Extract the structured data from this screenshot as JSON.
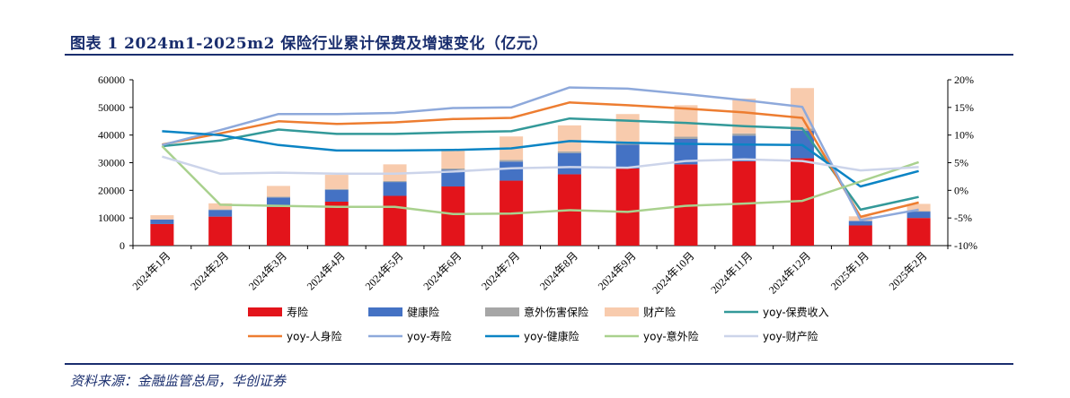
{
  "header": {
    "title": "图表 1 2024m1-2025m2 保险行业累计保费及增速变化（亿元）"
  },
  "footer": {
    "source": "资料来源：金融监管总局，华创证券"
  },
  "chart_data": {
    "type": "bar",
    "stacked": true,
    "categories": [
      "2024年1月",
      "2024年2月",
      "2024年3月",
      "2024年4月",
      "2024年5月",
      "2024年6月",
      "2024年7月",
      "2024年8月",
      "2024年9月",
      "2024年10月",
      "2024年11月",
      "2024年12月",
      "2025年1月",
      "2025年2月"
    ],
    "y_left": {
      "ticks": [
        "0",
        "10000",
        "20000",
        "30000",
        "40000",
        "50000",
        "60000"
      ],
      "ylim": [
        0,
        60000
      ]
    },
    "y_right": {
      "ticks": [
        "-10%",
        "-5%",
        "0%",
        "5%",
        "10%",
        "15%",
        "20%"
      ],
      "ylim": [
        -10,
        20
      ]
    },
    "bar_series": [
      {
        "name": "寿险",
        "color": "#e3141b",
        "values": [
          7800,
          10500,
          14000,
          15900,
          18000,
          21400,
          23500,
          25800,
          27900,
          29400,
          30500,
          31600,
          7300,
          10000
        ]
      },
      {
        "name": "健康险",
        "color": "#4472c4",
        "values": [
          1600,
          2400,
          3400,
          4300,
          5000,
          6000,
          6900,
          7700,
          8600,
          9200,
          9300,
          10000,
          1600,
          2300
        ]
      },
      {
        "name": "意外伤害保险",
        "color": "#a6a6a6",
        "values": [
          100,
          200,
          300,
          300,
          400,
          500,
          600,
          600,
          700,
          800,
          800,
          800,
          100,
          200
        ]
      },
      {
        "name": "财产险",
        "color": "#f8cbad",
        "values": [
          1500,
          2200,
          3900,
          5100,
          6000,
          7100,
          8500,
          9400,
          10400,
          11400,
          12600,
          14600,
          1600,
          2600
        ]
      }
    ],
    "line_series": [
      {
        "name": "yoy-保费收入",
        "color": "#339999",
        "values": [
          8,
          9,
          11,
          10.2,
          10.2,
          10.5,
          10.7,
          13,
          12.6,
          12.2,
          11.6,
          11.2,
          -3.5,
          -1.2
        ]
      },
      {
        "name": "yoy-人身险",
        "color": "#ed7d31",
        "values": [
          8.3,
          10.3,
          12.5,
          12,
          12.3,
          12.9,
          13.1,
          15.9,
          15.4,
          14.8,
          14.1,
          13.1,
          -4.8,
          -2.2
        ]
      },
      {
        "name": "yoy-寿险",
        "color": "#8ea9db",
        "values": [
          8.2,
          10.9,
          13.8,
          13.8,
          14,
          14.9,
          15,
          18.6,
          18.4,
          17.4,
          16.3,
          15.1,
          -5.4,
          -3.5
        ]
      },
      {
        "name": "yoy-健康险",
        "color": "#0b84c4",
        "values": [
          10.7,
          10,
          8.2,
          7.2,
          7.2,
          7.3,
          7.6,
          8.9,
          8.6,
          8.4,
          8.3,
          8.2,
          0.7,
          3.5
        ]
      },
      {
        "name": "yoy-意外险",
        "color": "#a9d18e",
        "values": [
          8,
          -2.6,
          -2.8,
          -3,
          -3,
          -4.3,
          -4.2,
          -3.6,
          -3.9,
          -2.8,
          -2.4,
          -1.9,
          1.6,
          5.1
        ]
      },
      {
        "name": "yoy-财产险",
        "color": "#ccd4ea",
        "values": [
          6.1,
          3,
          3.2,
          3,
          3,
          3.4,
          4,
          4.2,
          4.1,
          5.3,
          5.6,
          5.3,
          3.6,
          4.2
        ]
      }
    ],
    "legend": {
      "placement": "bottom",
      "rows": [
        [
          "寿险",
          "健康险",
          "意外伤害保险",
          "财产险",
          "yoy-保费收入"
        ],
        [
          "yoy-人身险",
          "yoy-寿险",
          "yoy-健康险",
          "yoy-意外险",
          "yoy-财产险"
        ]
      ]
    },
    "grid": false
  }
}
